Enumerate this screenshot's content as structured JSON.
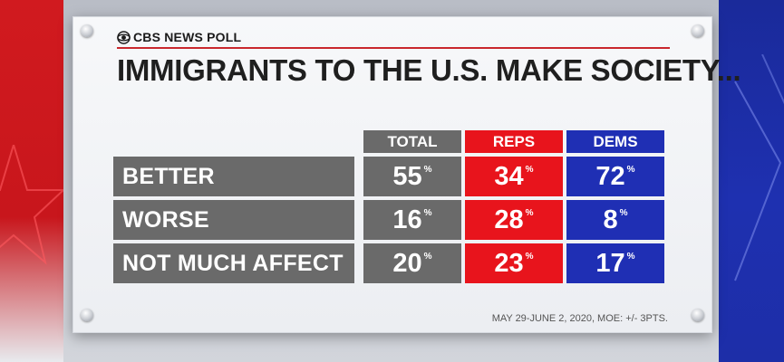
{
  "brand": "CBS NEWS POLL",
  "chart_data": {
    "type": "table",
    "title": "IMMIGRANTS TO THE U.S. MAKE SOCIETY...",
    "columns": [
      "TOTAL",
      "REPS",
      "DEMS"
    ],
    "rows": [
      {
        "label": "BETTER",
        "values": [
          55,
          34,
          72
        ]
      },
      {
        "label": "WORSE",
        "values": [
          16,
          28,
          8
        ]
      },
      {
        "label": "NOT MUCH AFFECT",
        "values": [
          20,
          23,
          17
        ]
      }
    ],
    "unit": "%",
    "colors": {
      "TOTAL": "#6a6a6a",
      "REPS": "#e8141c",
      "DEMS": "#1f2fb4"
    }
  },
  "footer": "MAY 29-JUNE 2, 2020, MOE: +/- 3PTS."
}
